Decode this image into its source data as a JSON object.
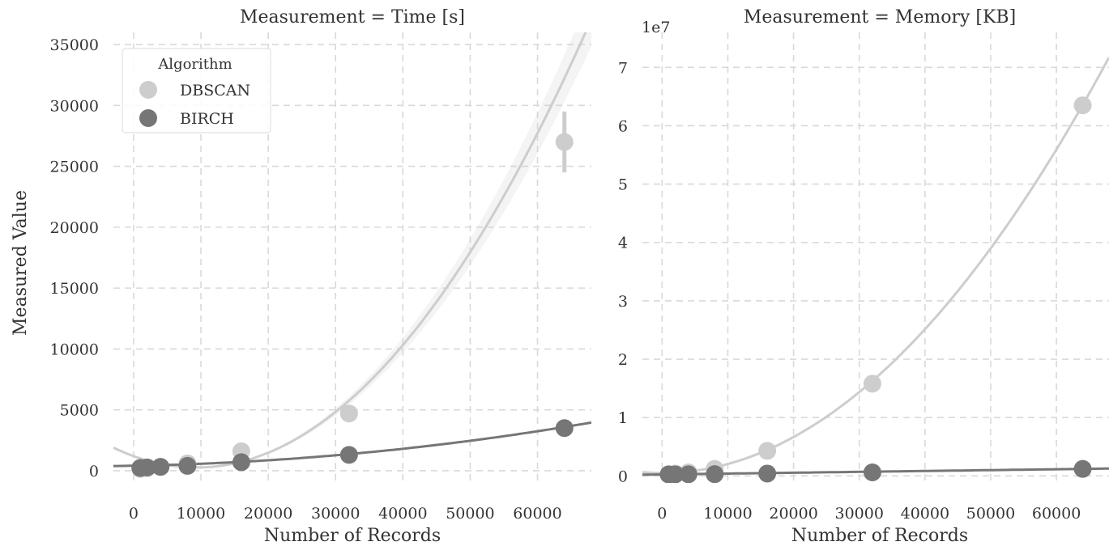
{
  "colors": {
    "DBSCAN": "#cdcdcd",
    "BIRCH": "#767676",
    "grid": "#d9d9d9",
    "text": "#333333"
  },
  "figure": {
    "ylabel": "Measured Value",
    "legend": {
      "title": "Algorithm",
      "placement": "top-left",
      "entries": [
        "DBSCAN",
        "BIRCH"
      ]
    }
  },
  "chart_data": [
    {
      "type": "scatter",
      "title": "Measurement = Time [s]",
      "xlabel": "Number of Records",
      "ylabel": "Measured Value",
      "xlim": [
        -3000,
        68000
      ],
      "ylim": [
        -1000,
        36000
      ],
      "x_ticks": [
        0,
        10000,
        20000,
        30000,
        40000,
        50000,
        60000
      ],
      "y_ticks": [
        0,
        5000,
        10000,
        15000,
        20000,
        25000,
        30000,
        35000
      ],
      "x_tick_labels": [
        "0",
        "10000",
        "20000",
        "30000",
        "40000",
        "50000",
        "60000"
      ],
      "y_tick_labels": [
        "0",
        "5000",
        "10000",
        "15000",
        "20000",
        "25000",
        "30000",
        "35000"
      ],
      "offset_label": "",
      "grid": true,
      "legend": true,
      "series": [
        {
          "name": "DBSCAN",
          "x": [
            1000,
            2000,
            4000,
            8000,
            16000,
            32000,
            64000
          ],
          "y": [
            150,
            200,
            300,
            600,
            1600,
            4700,
            27000
          ],
          "error": [
            0,
            0,
            0,
            0,
            0,
            0,
            2500
          ],
          "fit": [
            1200,
            -0.2,
            1.07e-05
          ]
        },
        {
          "name": "BIRCH",
          "x": [
            1000,
            2000,
            4000,
            8000,
            16000,
            32000,
            64000
          ],
          "y": [
            230,
            270,
            320,
            400,
            700,
            1300,
            3500
          ],
          "error": [
            0,
            0,
            0,
            0,
            0,
            0,
            0
          ],
          "fit": [
            410,
            0.01,
            6.2e-07
          ]
        }
      ]
    },
    {
      "type": "scatter",
      "title": "Measurement = Memory [KB]",
      "xlabel": "Number of Records",
      "ylabel": "",
      "xlim": [
        -3000,
        68000
      ],
      "ylim": [
        -1200000,
        76000000
      ],
      "x_ticks": [
        0,
        10000,
        20000,
        30000,
        40000,
        50000,
        60000
      ],
      "y_ticks": [
        0,
        10000000,
        20000000,
        30000000,
        40000000,
        50000000,
        60000000,
        70000000
      ],
      "x_tick_labels": [
        "0",
        "10000",
        "20000",
        "30000",
        "40000",
        "50000",
        "60000"
      ],
      "y_tick_labels": [
        "0",
        "1",
        "2",
        "3",
        "4",
        "5",
        "6",
        "7"
      ],
      "offset_label": "1e7",
      "grid": true,
      "legend": false,
      "series": [
        {
          "name": "DBSCAN",
          "x": [
            1000,
            2000,
            4000,
            8000,
            16000,
            32000,
            64000
          ],
          "y": [
            300000,
            400000,
            600000,
            1200000,
            4300000,
            15800000,
            63500000
          ],
          "error": [
            0,
            0,
            0,
            0,
            0,
            0,
            0
          ],
          "fit": [
            500000,
            0,
            0.0154
          ]
        },
        {
          "name": "BIRCH",
          "x": [
            1000,
            2000,
            4000,
            8000,
            16000,
            32000,
            64000
          ],
          "y": [
            250000,
            260000,
            280000,
            300000,
            400000,
            600000,
            1200000
          ],
          "error": [
            0,
            0,
            0,
            0,
            0,
            0,
            0
          ],
          "fit": [
            250000,
            14.8,
            0
          ]
        }
      ]
    }
  ]
}
